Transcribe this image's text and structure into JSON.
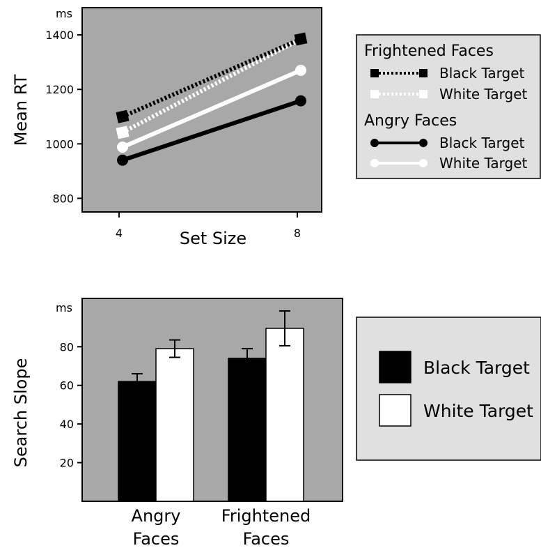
{
  "chart_data": [
    {
      "type": "line",
      "unit": "ms",
      "ylabel": "Mean RT",
      "xlabel": "Set Size",
      "x": [
        4,
        8
      ],
      "ylim": [
        750,
        1500
      ],
      "yticks": [
        800,
        1000,
        1200,
        1400
      ],
      "grid": false,
      "legend_position": "right",
      "legend_groups": [
        {
          "heading": "Frightened Faces",
          "series_idx": [
            0,
            1
          ]
        },
        {
          "heading": "Angry Faces",
          "series_idx": [
            2,
            3
          ]
        }
      ],
      "series": [
        {
          "name": "Black Target",
          "values": [
            1100,
            1385
          ],
          "color": "#000000",
          "marker": "square",
          "dash": "dotted"
        },
        {
          "name": "White Target",
          "values": [
            1042,
            1385
          ],
          "color": "#ffffff",
          "marker": "square",
          "dash": "dotted"
        },
        {
          "name": "Black Target",
          "values": [
            940,
            1158
          ],
          "color": "#000000",
          "marker": "circle",
          "dash": "solid"
        },
        {
          "name": "White Target",
          "values": [
            988,
            1270
          ],
          "color": "#ffffff",
          "marker": "circle",
          "dash": "solid"
        }
      ]
    },
    {
      "type": "bar",
      "unit": "ms",
      "ylabel": "Search Slope",
      "categories": [
        [
          "Angry",
          "Faces"
        ],
        [
          "Frightened",
          "Faces"
        ]
      ],
      "ylim": [
        0,
        105
      ],
      "yticks": [
        20,
        40,
        60,
        80
      ],
      "grid": false,
      "legend_position": "right",
      "series": [
        {
          "name": "Black Target",
          "values": [
            62,
            74
          ],
          "errors": [
            4,
            5
          ],
          "color": "#000000"
        },
        {
          "name": "White Target",
          "values": [
            79,
            89.5
          ],
          "errors": [
            4.5,
            9
          ],
          "color": "#ffffff"
        }
      ]
    }
  ]
}
